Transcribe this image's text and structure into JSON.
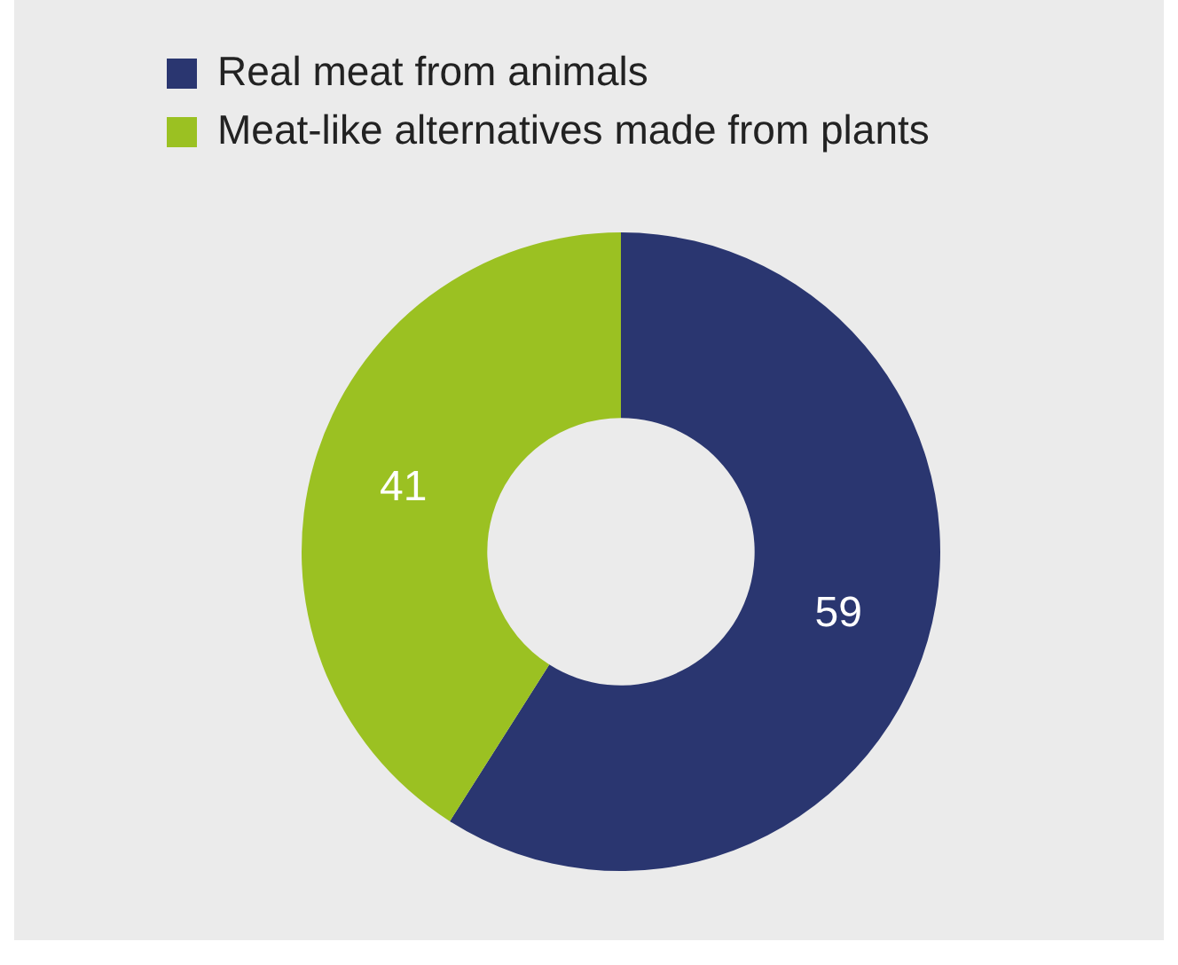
{
  "chart_data": {
    "type": "donut",
    "categories": [
      "Real meat from animals",
      "Meat-like alternatives made from plants"
    ],
    "values": [
      59,
      41
    ],
    "colors": [
      "#2a3670",
      "#9bc122"
    ],
    "data_labels": true,
    "legend": "top left"
  }
}
